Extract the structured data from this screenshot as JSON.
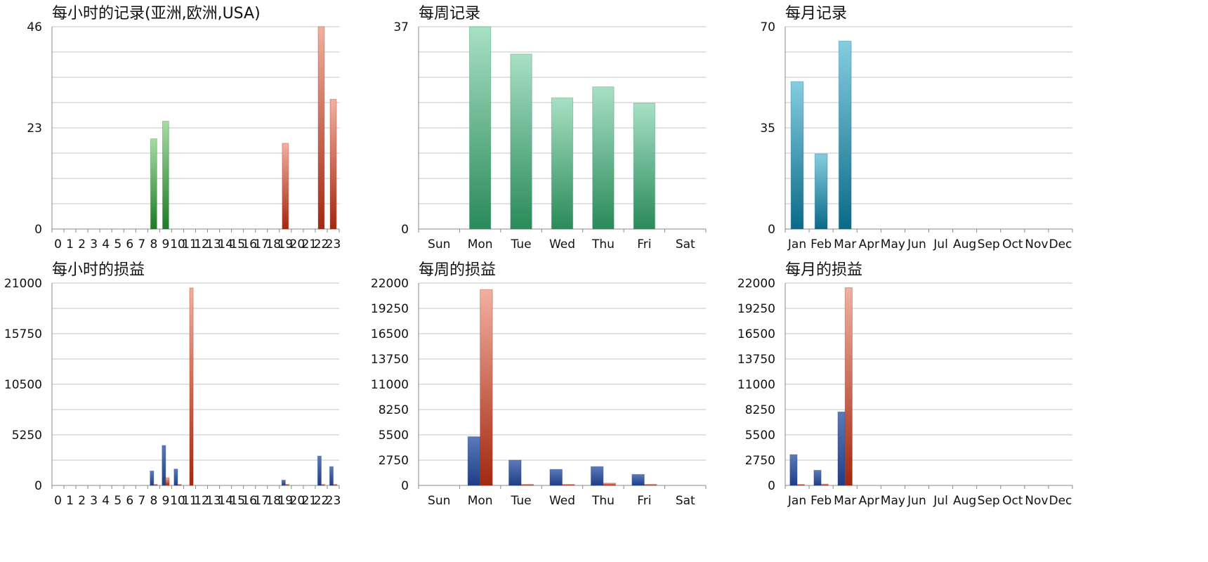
{
  "colors": {
    "green": [
      "#a7dca4",
      "#1f7a26"
    ],
    "red": [
      "#f2b0a0",
      "#a3280f"
    ],
    "teal": [
      "#a8e0c4",
      "#2a8a5a"
    ],
    "cyan": [
      "#85cde0",
      "#0a6a88"
    ],
    "blue": [
      "#5a7ab8",
      "#1f3e88"
    ],
    "orange": [
      "#f2b0a0",
      "#a3280f"
    ]
  },
  "chart_data": [
    {
      "type": "bar",
      "title": "每小时的记录(亚洲,欧洲,USA)",
      "categories": [
        "0",
        "1",
        "2",
        "3",
        "4",
        "5",
        "6",
        "7",
        "8",
        "9",
        "10",
        "11",
        "12",
        "13",
        "14",
        "15",
        "16",
        "17",
        "18",
        "19",
        "20",
        "21",
        "22",
        "23"
      ],
      "values": [
        0,
        0,
        0,
        0,
        0,
        0,
        0,
        0,
        20.5,
        24.5,
        0,
        0,
        0,
        0,
        0,
        0,
        0,
        0,
        0,
        19.5,
        0,
        0,
        46,
        29.5
      ],
      "bar_colors": [
        "green",
        "green",
        "green",
        "green",
        "green",
        "green",
        "green",
        "green",
        "green",
        "green",
        "green",
        "green",
        "green",
        "green",
        "green",
        "green",
        "green",
        "green",
        "green",
        "red",
        "red",
        "red",
        "red",
        "red"
      ],
      "ylim": [
        0,
        46
      ],
      "yticks": [
        "0",
        "23",
        "46"
      ],
      "grid_divisions": 8
    },
    {
      "type": "bar",
      "title": "每周记录",
      "categories": [
        "Sun",
        "Mon",
        "Tue",
        "Wed",
        "Thu",
        "Fri",
        "Sat"
      ],
      "values": [
        0,
        37,
        32,
        24,
        26,
        23,
        0
      ],
      "bar_colors": [
        "teal",
        "teal",
        "teal",
        "teal",
        "teal",
        "teal",
        "teal"
      ],
      "ylim": [
        0,
        37
      ],
      "yticks": [
        "0",
        "37"
      ],
      "grid_divisions": 8
    },
    {
      "type": "bar",
      "title": "每月记录",
      "categories": [
        "Jan",
        "Feb",
        "Mar",
        "Apr",
        "May",
        "Jun",
        "Jul",
        "Aug",
        "Sep",
        "Oct",
        "Nov",
        "Dec"
      ],
      "values": [
        51,
        26,
        65,
        0,
        0,
        0,
        0,
        0,
        0,
        0,
        0,
        0
      ],
      "bar_colors": [
        "cyan",
        "cyan",
        "cyan",
        "cyan",
        "cyan",
        "cyan",
        "cyan",
        "cyan",
        "cyan",
        "cyan",
        "cyan",
        "cyan"
      ],
      "ylim": [
        0,
        70
      ],
      "yticks": [
        "0",
        "35",
        "70"
      ],
      "grid_divisions": 8
    },
    {
      "type": "bar",
      "title": "每小时的损益",
      "categories": [
        "0",
        "1",
        "2",
        "3",
        "4",
        "5",
        "6",
        "7",
        "8",
        "9",
        "10",
        "11",
        "12",
        "13",
        "14",
        "15",
        "16",
        "17",
        "18",
        "19",
        "20",
        "21",
        "22",
        "23"
      ],
      "series": [
        {
          "color": "blue",
          "values": [
            0,
            0,
            0,
            0,
            0,
            0,
            0,
            0,
            1500,
            4150,
            1700,
            0,
            0,
            0,
            0,
            0,
            0,
            0,
            0,
            550,
            0,
            0,
            3050,
            1950
          ]
        },
        {
          "color": "orange",
          "values": [
            0,
            0,
            0,
            0,
            0,
            0,
            0,
            0,
            50,
            800,
            50,
            20500,
            0,
            0,
            0,
            0,
            0,
            0,
            0,
            100,
            0,
            0,
            100,
            50
          ]
        }
      ],
      "ylim": [
        0,
        21000
      ],
      "yticks": [
        "0",
        "5250",
        "10500",
        "15750",
        "21000"
      ],
      "grid_divisions": 8
    },
    {
      "type": "bar",
      "title": "每周的损益",
      "categories": [
        "Sun",
        "Mon",
        "Tue",
        "Wed",
        "Thu",
        "Fri",
        "Sat"
      ],
      "series": [
        {
          "color": "blue",
          "values": [
            0,
            5300,
            2750,
            1750,
            2050,
            1200,
            0
          ]
        },
        {
          "color": "orange",
          "values": [
            0,
            21300,
            100,
            100,
            250,
            120,
            0
          ]
        }
      ],
      "ylim": [
        0,
        22000
      ],
      "yticks": [
        "0",
        "2750",
        "5500",
        "8250",
        "11000",
        "13750",
        "16500",
        "19250",
        "22000"
      ],
      "grid_divisions": 8
    },
    {
      "type": "bar",
      "title": "每月的损益",
      "categories": [
        "Jan",
        "Feb",
        "Mar",
        "Apr",
        "May",
        "Jun",
        "Jul",
        "Aug",
        "Sep",
        "Oct",
        "Nov",
        "Dec"
      ],
      "series": [
        {
          "color": "blue",
          "values": [
            3350,
            1650,
            8000,
            0,
            0,
            0,
            0,
            0,
            0,
            0,
            0,
            0
          ]
        },
        {
          "color": "orange",
          "values": [
            100,
            150,
            21500,
            0,
            0,
            0,
            0,
            0,
            0,
            0,
            0,
            0
          ]
        }
      ],
      "ylim": [
        0,
        22000
      ],
      "yticks": [
        "0",
        "2750",
        "5500",
        "8250",
        "11000",
        "13750",
        "16500",
        "19250",
        "22000"
      ],
      "grid_divisions": 8
    }
  ]
}
